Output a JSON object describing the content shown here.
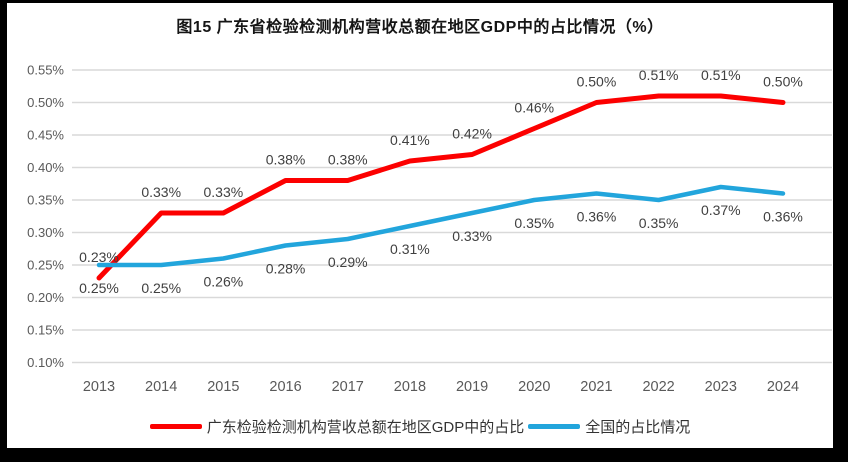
{
  "title": "图15  广东省检验检测机构营收总额在地区GDP中的占比情况（%）",
  "colors": {
    "guangdong_line": "#FC0000",
    "national_line": "#22A5DC",
    "gridline": "#D9D9D9",
    "axis_text": "#595959",
    "data_label_text": "#404040",
    "frame": "#000000",
    "background": "#FFFFFF"
  },
  "chart_data": {
    "type": "line",
    "title": "图15  广东省检验检测机构营收总额在地区GDP中的占比情况（%）",
    "categories": [
      "2013",
      "2014",
      "2015",
      "2016",
      "2017",
      "2018",
      "2019",
      "2020",
      "2021",
      "2022",
      "2023",
      "2024"
    ],
    "series": [
      {
        "name": "广东检验检测机构营收总额在地区GDP中的占比",
        "color": "#FC0000",
        "values": [
          0.23,
          0.33,
          0.33,
          0.38,
          0.38,
          0.41,
          0.42,
          0.46,
          0.5,
          0.51,
          0.51,
          0.5
        ],
        "labels": [
          "0.23%",
          "0.33%",
          "0.33%",
          "0.38%",
          "0.38%",
          "0.41%",
          "0.42%",
          "0.46%",
          "0.50%",
          "0.51%",
          "0.51%",
          "0.50%"
        ],
        "labels_position": "above"
      },
      {
        "name": "全国的占比情况",
        "color": "#22A5DC",
        "values": [
          0.25,
          0.25,
          0.26,
          0.28,
          0.29,
          0.31,
          0.33,
          0.35,
          0.36,
          0.35,
          0.37,
          0.36
        ],
        "labels": [
          "0.25%",
          "0.25%",
          "0.26%",
          "0.28%",
          "0.29%",
          "0.31%",
          "0.33%",
          "0.35%",
          "0.36%",
          "0.35%",
          "0.37%",
          "0.36%"
        ],
        "labels_position": "below"
      }
    ],
    "y_axis": {
      "min": 0.1,
      "max": 0.55,
      "step": 0.05,
      "ticks": [
        {
          "value": 0.55,
          "label": "0.55%"
        },
        {
          "value": 0.5,
          "label": "0.50%"
        },
        {
          "value": 0.45,
          "label": "0.45%"
        },
        {
          "value": 0.4,
          "label": "0.40%"
        },
        {
          "value": 0.35,
          "label": "0.35%"
        },
        {
          "value": 0.3,
          "label": "0.30%"
        },
        {
          "value": 0.25,
          "label": "0.25%"
        },
        {
          "value": 0.2,
          "label": "0.20%"
        },
        {
          "value": 0.15,
          "label": "0.15%"
        },
        {
          "value": 0.1,
          "label": "0.10%"
        }
      ]
    },
    "xlabel": "",
    "ylabel": "",
    "grid": true,
    "legend_position": "bottom"
  }
}
